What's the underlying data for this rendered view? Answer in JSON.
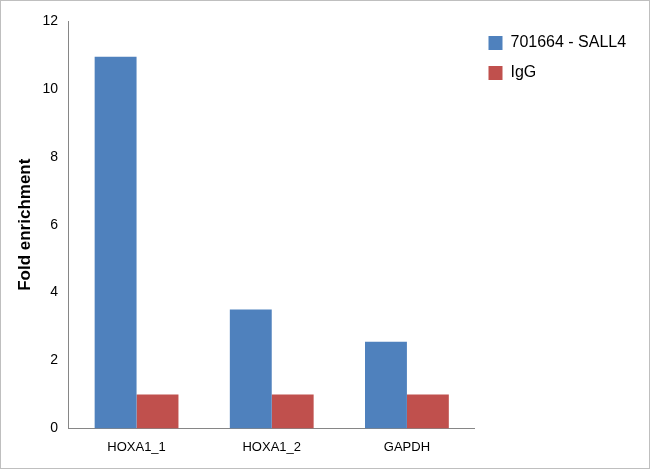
{
  "chart_data": {
    "type": "bar",
    "categories": [
      "HOXA1_1",
      "HOXA1_2",
      "GAPDH"
    ],
    "series": [
      {
        "name": "701664 - SALL4",
        "color": "#4f81bd",
        "values": [
          10.95,
          3.5,
          2.55
        ]
      },
      {
        "name": "IgG",
        "color": "#c0504d",
        "values": [
          1,
          1,
          1
        ]
      }
    ],
    "y_label": "Fold enrichment",
    "ylim": [
      0,
      12
    ],
    "yticks": [
      0,
      2,
      4,
      6,
      8,
      10,
      12
    ],
    "grid": false,
    "legend": "right"
  }
}
